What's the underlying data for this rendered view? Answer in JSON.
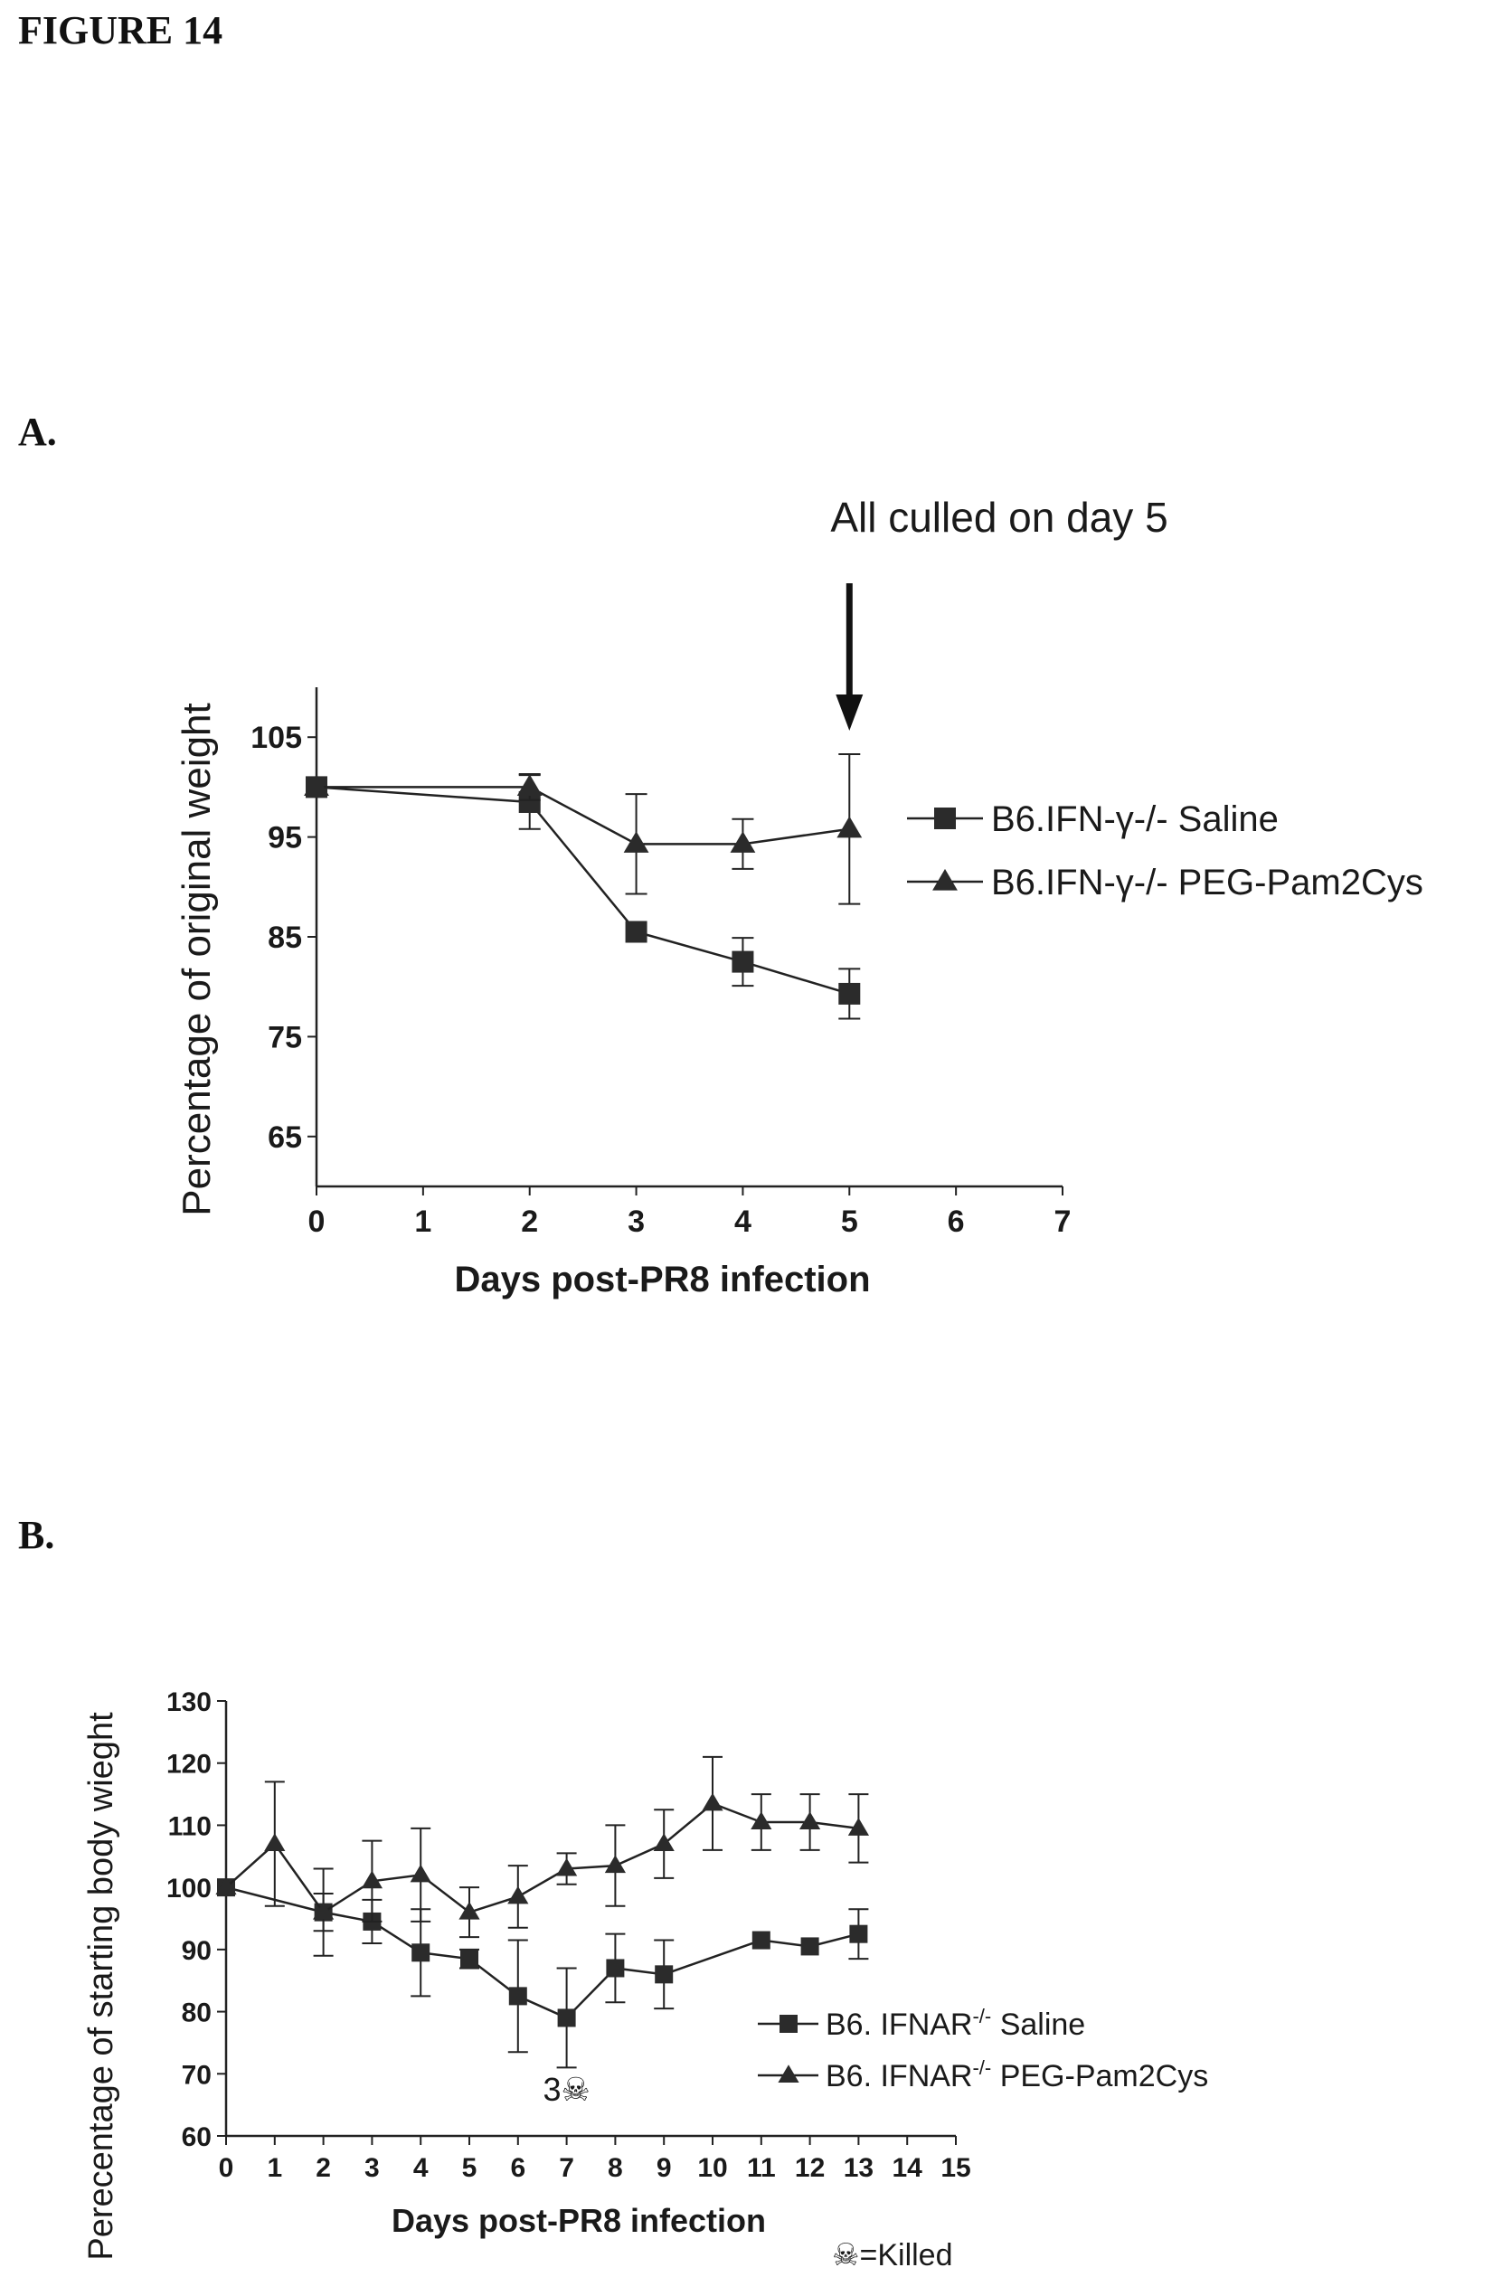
{
  "figure": {
    "title": "FIGURE 14",
    "panel_a_label": "A.",
    "panel_b_label": "B."
  },
  "chart_data": [
    {
      "type": "line",
      "panel": "A",
      "xlabel": "Days  post-PR8  infection",
      "ylabel": "Percentage of original weight",
      "xlim": [
        0,
        7
      ],
      "ylim": [
        60,
        110
      ],
      "xticks": [
        0,
        1,
        2,
        3,
        4,
        5,
        6,
        7
      ],
      "yticks": [
        65,
        75,
        85,
        95,
        105
      ],
      "annotation": "All culled on day 5",
      "annotation_x": 5,
      "legend_position": "right",
      "series": [
        {
          "name": "B6.IFN-γ-/- Saline",
          "marker": "square",
          "x": [
            0,
            2,
            3,
            4,
            5
          ],
          "y": [
            100,
            98.5,
            85.5,
            82.5,
            79.3
          ],
          "err": [
            0,
            2.7,
            0,
            2.4,
            2.5
          ]
        },
        {
          "name": "B6.IFN-γ-/- PEG-Pam2Cys",
          "marker": "triangle",
          "x": [
            0,
            2,
            3,
            4,
            5
          ],
          "y": [
            100,
            100,
            94.3,
            94.3,
            95.8
          ],
          "err": [
            0,
            1.3,
            5.0,
            2.5,
            7.5
          ]
        }
      ]
    },
    {
      "type": "line",
      "panel": "B",
      "xlabel": "Days  post-PR8  infection",
      "ylabel": "Perecentage of starting body wieght",
      "xlim": [
        0,
        15
      ],
      "ylim": [
        60,
        130
      ],
      "xticks": [
        0,
        1,
        2,
        3,
        4,
        5,
        6,
        7,
        8,
        9,
        10,
        11,
        12,
        13,
        14,
        15
      ],
      "yticks": [
        60,
        70,
        80,
        90,
        100,
        110,
        120,
        130
      ],
      "annotation": "3☠",
      "annotation_x": 7,
      "footnote": "☠=Killed",
      "legend_position": "bottom-right",
      "series": [
        {
          "name_prefix": "B6. IFNAR",
          "name_sup": "-/-",
          "name_suffix": " Saline",
          "marker": "square",
          "x": [
            0,
            2,
            3,
            4,
            5,
            6,
            7,
            8,
            9,
            11,
            12,
            13
          ],
          "y": [
            100,
            96,
            94.5,
            89.5,
            88.5,
            82.5,
            79,
            87,
            86,
            91.5,
            90.5,
            92.5
          ],
          "err": [
            0,
            3,
            3.5,
            7,
            1.5,
            9,
            8,
            5.5,
            5.5,
            0,
            0,
            4
          ]
        },
        {
          "name_prefix": "B6. IFNAR",
          "name_sup": "-/-",
          "name_suffix": " PEG-Pam2Cys",
          "marker": "triangle",
          "x": [
            0,
            1,
            2,
            3,
            4,
            5,
            6,
            7,
            8,
            9,
            10,
            11,
            12,
            13
          ],
          "y": [
            100,
            107,
            96,
            101,
            102,
            96,
            98.5,
            103,
            103.5,
            107,
            113.5,
            110.5,
            110.5,
            109.5
          ],
          "err": [
            0,
            10,
            7,
            6.5,
            7.5,
            4,
            5,
            2.5,
            6.5,
            5.5,
            7.5,
            4.5,
            4.5,
            5.5
          ]
        }
      ]
    }
  ]
}
